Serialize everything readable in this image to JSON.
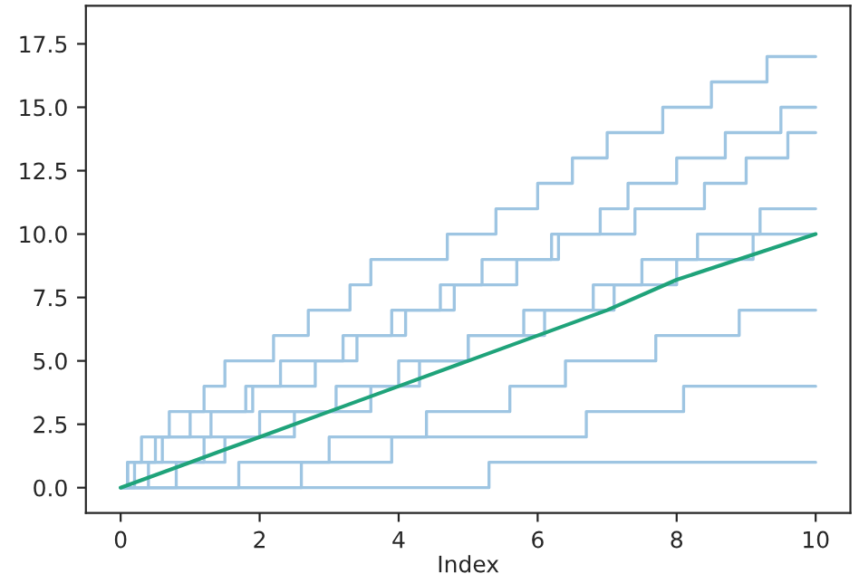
{
  "chart_data": {
    "type": "step",
    "xlabel": "Index",
    "xlim": [
      -0.5,
      10.5
    ],
    "ylim": [
      -1,
      19
    ],
    "xticks": [
      0,
      2,
      4,
      6,
      8,
      10
    ],
    "yticks": [
      {
        "value": 0,
        "label": "0.0"
      },
      {
        "value": 2.5,
        "label": "2.5"
      },
      {
        "value": 5,
        "label": "5.0"
      },
      {
        "value": 7.5,
        "label": "7.5"
      },
      {
        "value": 10,
        "label": "10.0"
      },
      {
        "value": 12.5,
        "label": "12.5"
      },
      {
        "value": 15,
        "label": "15.0"
      },
      {
        "value": 17.5,
        "label": "17.5"
      }
    ],
    "grid": false,
    "series": [
      {
        "color": "#9ec5e2",
        "x": [
          0,
          0.1,
          0.3,
          0.7,
          1.2,
          1.5,
          2.2,
          2.7,
          3.3,
          3.6,
          4.7,
          5.4,
          6.0,
          6.5,
          7.0,
          7.8,
          8.5,
          9.3,
          10
        ],
        "values": [
          0,
          1,
          2,
          3,
          4,
          5,
          6,
          7,
          8,
          9,
          10,
          11,
          12,
          13,
          14,
          15,
          16,
          17,
          17
        ]
      },
      {
        "color": "#9ec5e2",
        "x": [
          0,
          5.3,
          10
        ],
        "values": [
          0,
          1,
          1
        ]
      },
      {
        "color": "#9ec5e2",
        "x": [
          0,
          2.6,
          3.9,
          6.7,
          8.1,
          10
        ],
        "values": [
          0,
          1,
          2,
          3,
          4,
          4
        ]
      },
      {
        "color": "#9ec5e2",
        "x": [
          0,
          0.4,
          1.2,
          2.5,
          3.6,
          4.3,
          5.0,
          6.1,
          7.1,
          8.0,
          9.1,
          10
        ],
        "values": [
          0,
          1,
          2,
          3,
          4,
          5,
          6,
          7,
          8,
          9,
          10,
          10
        ]
      },
      {
        "color": "#9ec5e2",
        "x": [
          0,
          0.2,
          0.6,
          1.0,
          1.9,
          2.8,
          3.4,
          4.1,
          4.6,
          5.7,
          6.2,
          7.4,
          8.4,
          9.0,
          9.6,
          10
        ],
        "values": [
          0,
          1,
          2,
          3,
          4,
          5,
          6,
          7,
          8,
          9,
          10,
          11,
          12,
          13,
          14,
          14
        ]
      },
      {
        "color": "#9ec5e2",
        "x": [
          0,
          1.7,
          3.0,
          4.4,
          5.6,
          6.4,
          7.7,
          8.9,
          10
        ],
        "values": [
          0,
          1,
          2,
          3,
          4,
          5,
          6,
          7,
          7
        ]
      },
      {
        "color": "#9ec5e2",
        "x": [
          0,
          0.8,
          1.5,
          2.0,
          3.1,
          4.0,
          5.0,
          5.8,
          6.8,
          7.5,
          8.3,
          9.2,
          10
        ],
        "values": [
          0,
          1,
          2,
          3,
          4,
          5,
          6,
          7,
          8,
          9,
          10,
          11,
          11
        ]
      },
      {
        "color": "#9ec5e2",
        "x": [
          0,
          0.1,
          0.5,
          1.3,
          1.8,
          2.3,
          3.2,
          3.9,
          4.8,
          5.2,
          6.3,
          6.9,
          7.3,
          8.0,
          8.7,
          9.5,
          10
        ],
        "values": [
          0,
          1,
          2,
          3,
          4,
          5,
          6,
          7,
          8,
          9,
          10,
          11,
          12,
          13,
          14,
          15,
          15
        ]
      },
      {
        "type": "line",
        "color": "#1fa37a",
        "x": [
          0,
          1,
          2,
          3,
          4,
          5,
          6,
          7,
          8,
          9,
          10
        ],
        "values": [
          0,
          1,
          2,
          3,
          4,
          5,
          6,
          7,
          8.2,
          9.1,
          10
        ]
      }
    ]
  }
}
